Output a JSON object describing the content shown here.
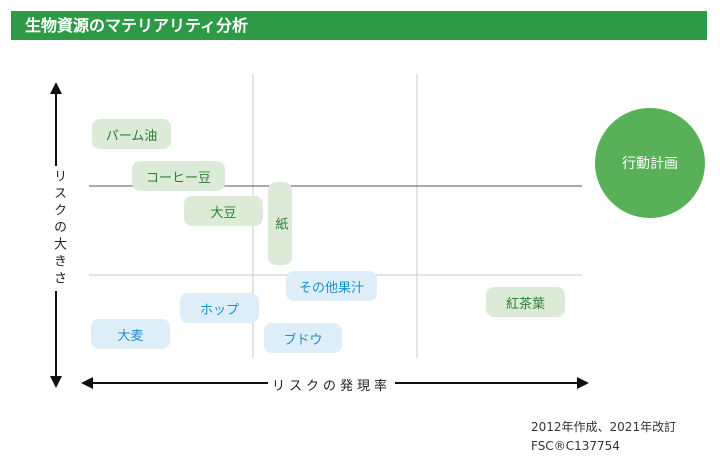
{
  "header": {
    "title": "生物資源のマテリアリティ分析"
  },
  "axes": {
    "y_label": "リスクの大きさ",
    "x_label": "リスクの発現率"
  },
  "items": {
    "palm_oil": "パーム油",
    "coffee": "コーヒー豆",
    "soybean": "大豆",
    "paper": "紙",
    "others": "その他果汁",
    "hops": "ホップ",
    "barley": "大麦",
    "grapes": "ブドウ",
    "tea_leaves": "紅茶葉"
  },
  "legend": {
    "action_plan": "行動計画"
  },
  "footer": {
    "date_note": "2012年作成、2021年改訂",
    "fsc": "FSC®C137754"
  },
  "colors": {
    "header_green": "#2e9a47",
    "action_circle": "#58b058",
    "green_text": "#2e7d32",
    "blue_text": "#1e8fc7"
  }
}
